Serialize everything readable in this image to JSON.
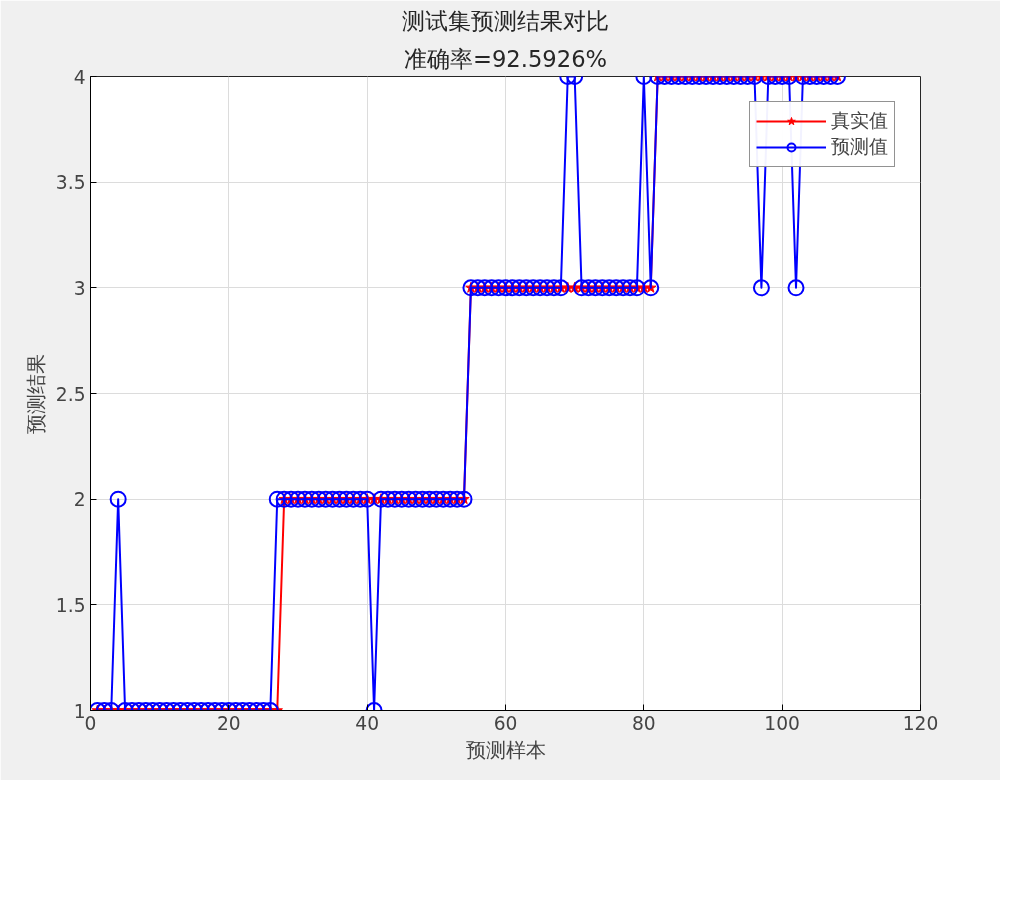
{
  "chart_data": {
    "type": "line",
    "title": "测试集预测结果对比",
    "subtitle": "准确率=92.5926%",
    "xlabel": "预测样本",
    "ylabel": "预测结果",
    "x": [
      1,
      2,
      3,
      4,
      5,
      6,
      7,
      8,
      9,
      10,
      11,
      12,
      13,
      14,
      15,
      16,
      17,
      18,
      19,
      20,
      21,
      22,
      23,
      24,
      25,
      26,
      27,
      28,
      29,
      30,
      31,
      32,
      33,
      34,
      35,
      36,
      37,
      38,
      39,
      40,
      41,
      42,
      43,
      44,
      45,
      46,
      47,
      48,
      49,
      50,
      51,
      52,
      53,
      54,
      55,
      56,
      57,
      58,
      59,
      60,
      61,
      62,
      63,
      64,
      65,
      66,
      67,
      68,
      69,
      70,
      71,
      72,
      73,
      74,
      75,
      76,
      77,
      78,
      79,
      80,
      81,
      82,
      83,
      84,
      85,
      86,
      87,
      88,
      89,
      90,
      91,
      92,
      93,
      94,
      95,
      96,
      97,
      98,
      99,
      100,
      101,
      102,
      103,
      104,
      105,
      106,
      107,
      108
    ],
    "series": [
      {
        "name": "真实值",
        "color": "#ff0000",
        "marker": "star",
        "values": [
          1,
          1,
          1,
          1,
          1,
          1,
          1,
          1,
          1,
          1,
          1,
          1,
          1,
          1,
          1,
          1,
          1,
          1,
          1,
          1,
          1,
          1,
          1,
          1,
          1,
          1,
          1,
          2,
          2,
          2,
          2,
          2,
          2,
          2,
          2,
          2,
          2,
          2,
          2,
          2,
          2,
          2,
          2,
          2,
          2,
          2,
          2,
          2,
          2,
          2,
          2,
          2,
          2,
          2,
          3,
          3,
          3,
          3,
          3,
          3,
          3,
          3,
          3,
          3,
          3,
          3,
          3,
          3,
          3,
          3,
          3,
          3,
          3,
          3,
          3,
          3,
          3,
          3,
          3,
          3,
          3,
          4,
          4,
          4,
          4,
          4,
          4,
          4,
          4,
          4,
          4,
          4,
          4,
          4,
          4,
          4,
          4,
          4,
          4,
          4,
          4,
          4,
          4,
          4,
          4,
          4,
          4,
          4
        ]
      },
      {
        "name": "预测值",
        "color": "#0000ff",
        "marker": "circle",
        "values": [
          1,
          1,
          1,
          2,
          1,
          1,
          1,
          1,
          1,
          1,
          1,
          1,
          1,
          1,
          1,
          1,
          1,
          1,
          1,
          1,
          1,
          1,
          1,
          1,
          1,
          1,
          2,
          2,
          2,
          2,
          2,
          2,
          2,
          2,
          2,
          2,
          2,
          2,
          2,
          2,
          1,
          2,
          2,
          2,
          2,
          2,
          2,
          2,
          2,
          2,
          2,
          2,
          2,
          2,
          3,
          3,
          3,
          3,
          3,
          3,
          3,
          3,
          3,
          3,
          3,
          3,
          3,
          3,
          4,
          4,
          3,
          3,
          3,
          3,
          3,
          3,
          3,
          3,
          3,
          4,
          3,
          4,
          4,
          4,
          4,
          4,
          4,
          4,
          4,
          4,
          4,
          4,
          4,
          4,
          4,
          4,
          3,
          4,
          4,
          4,
          4,
          3,
          4,
          4,
          4,
          4,
          4,
          4
        ]
      }
    ],
    "xlim": [
      0,
      120
    ],
    "xticks": [
      0,
      20,
      40,
      60,
      80,
      100,
      120
    ],
    "ylim": [
      1,
      4
    ],
    "yticks": [
      1,
      1.5,
      2,
      2.5,
      3,
      3.5,
      4
    ],
    "grid": true,
    "legend": "top right",
    "line_style": "solid"
  }
}
